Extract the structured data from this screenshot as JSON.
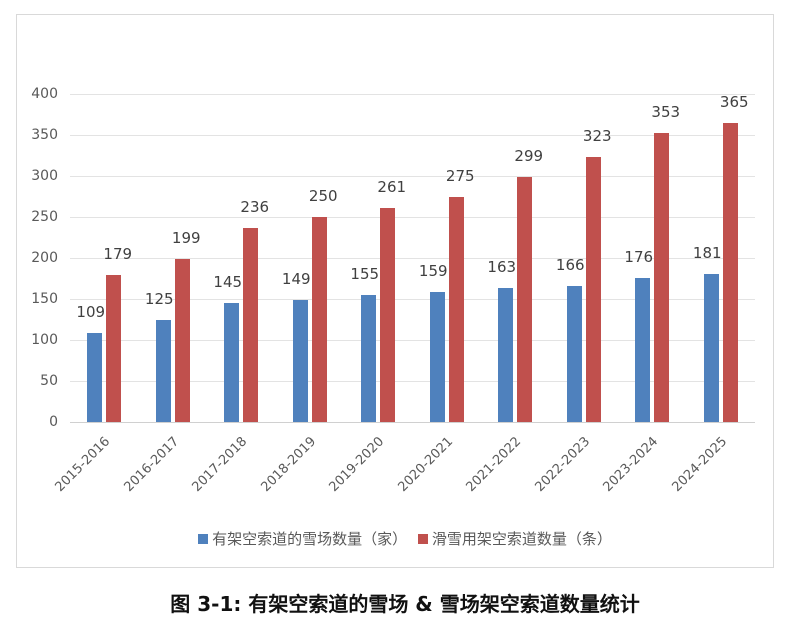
{
  "chart_data": {
    "type": "bar",
    "title": "图 3-1: 有架空索道的雪场 & 雪场架空索道数量统计",
    "xlabel": "",
    "ylabel": "",
    "ylim": [
      0,
      400
    ],
    "yticks": [
      0,
      50,
      100,
      150,
      200,
      250,
      300,
      350,
      400
    ],
    "grid": true,
    "legend_position": "bottom",
    "categories": [
      "2015-2016",
      "2016-2017",
      "2017-2018",
      "2018-2019",
      "2019-2020",
      "2020-2021",
      "2021-2022",
      "2022-2023",
      "2023-2024",
      "2024-2025"
    ],
    "series": [
      {
        "name": "有架空索道的雪场数量（家）",
        "color": "#4f81bd",
        "values": [
          109,
          125,
          145,
          149,
          155,
          159,
          163,
          166,
          176,
          181
        ]
      },
      {
        "name": "滑雪用架空索道数量（条）",
        "color": "#c0504d",
        "values": [
          179,
          199,
          236,
          250,
          261,
          275,
          299,
          323,
          353,
          365
        ]
      }
    ]
  },
  "legend": {
    "series0": "有架空索道的雪场数量（家）",
    "series1": "滑雪用架空索道数量（条）"
  },
  "caption": "图 3-1: 有架空索道的雪场 & 雪场架空索道数量统计"
}
